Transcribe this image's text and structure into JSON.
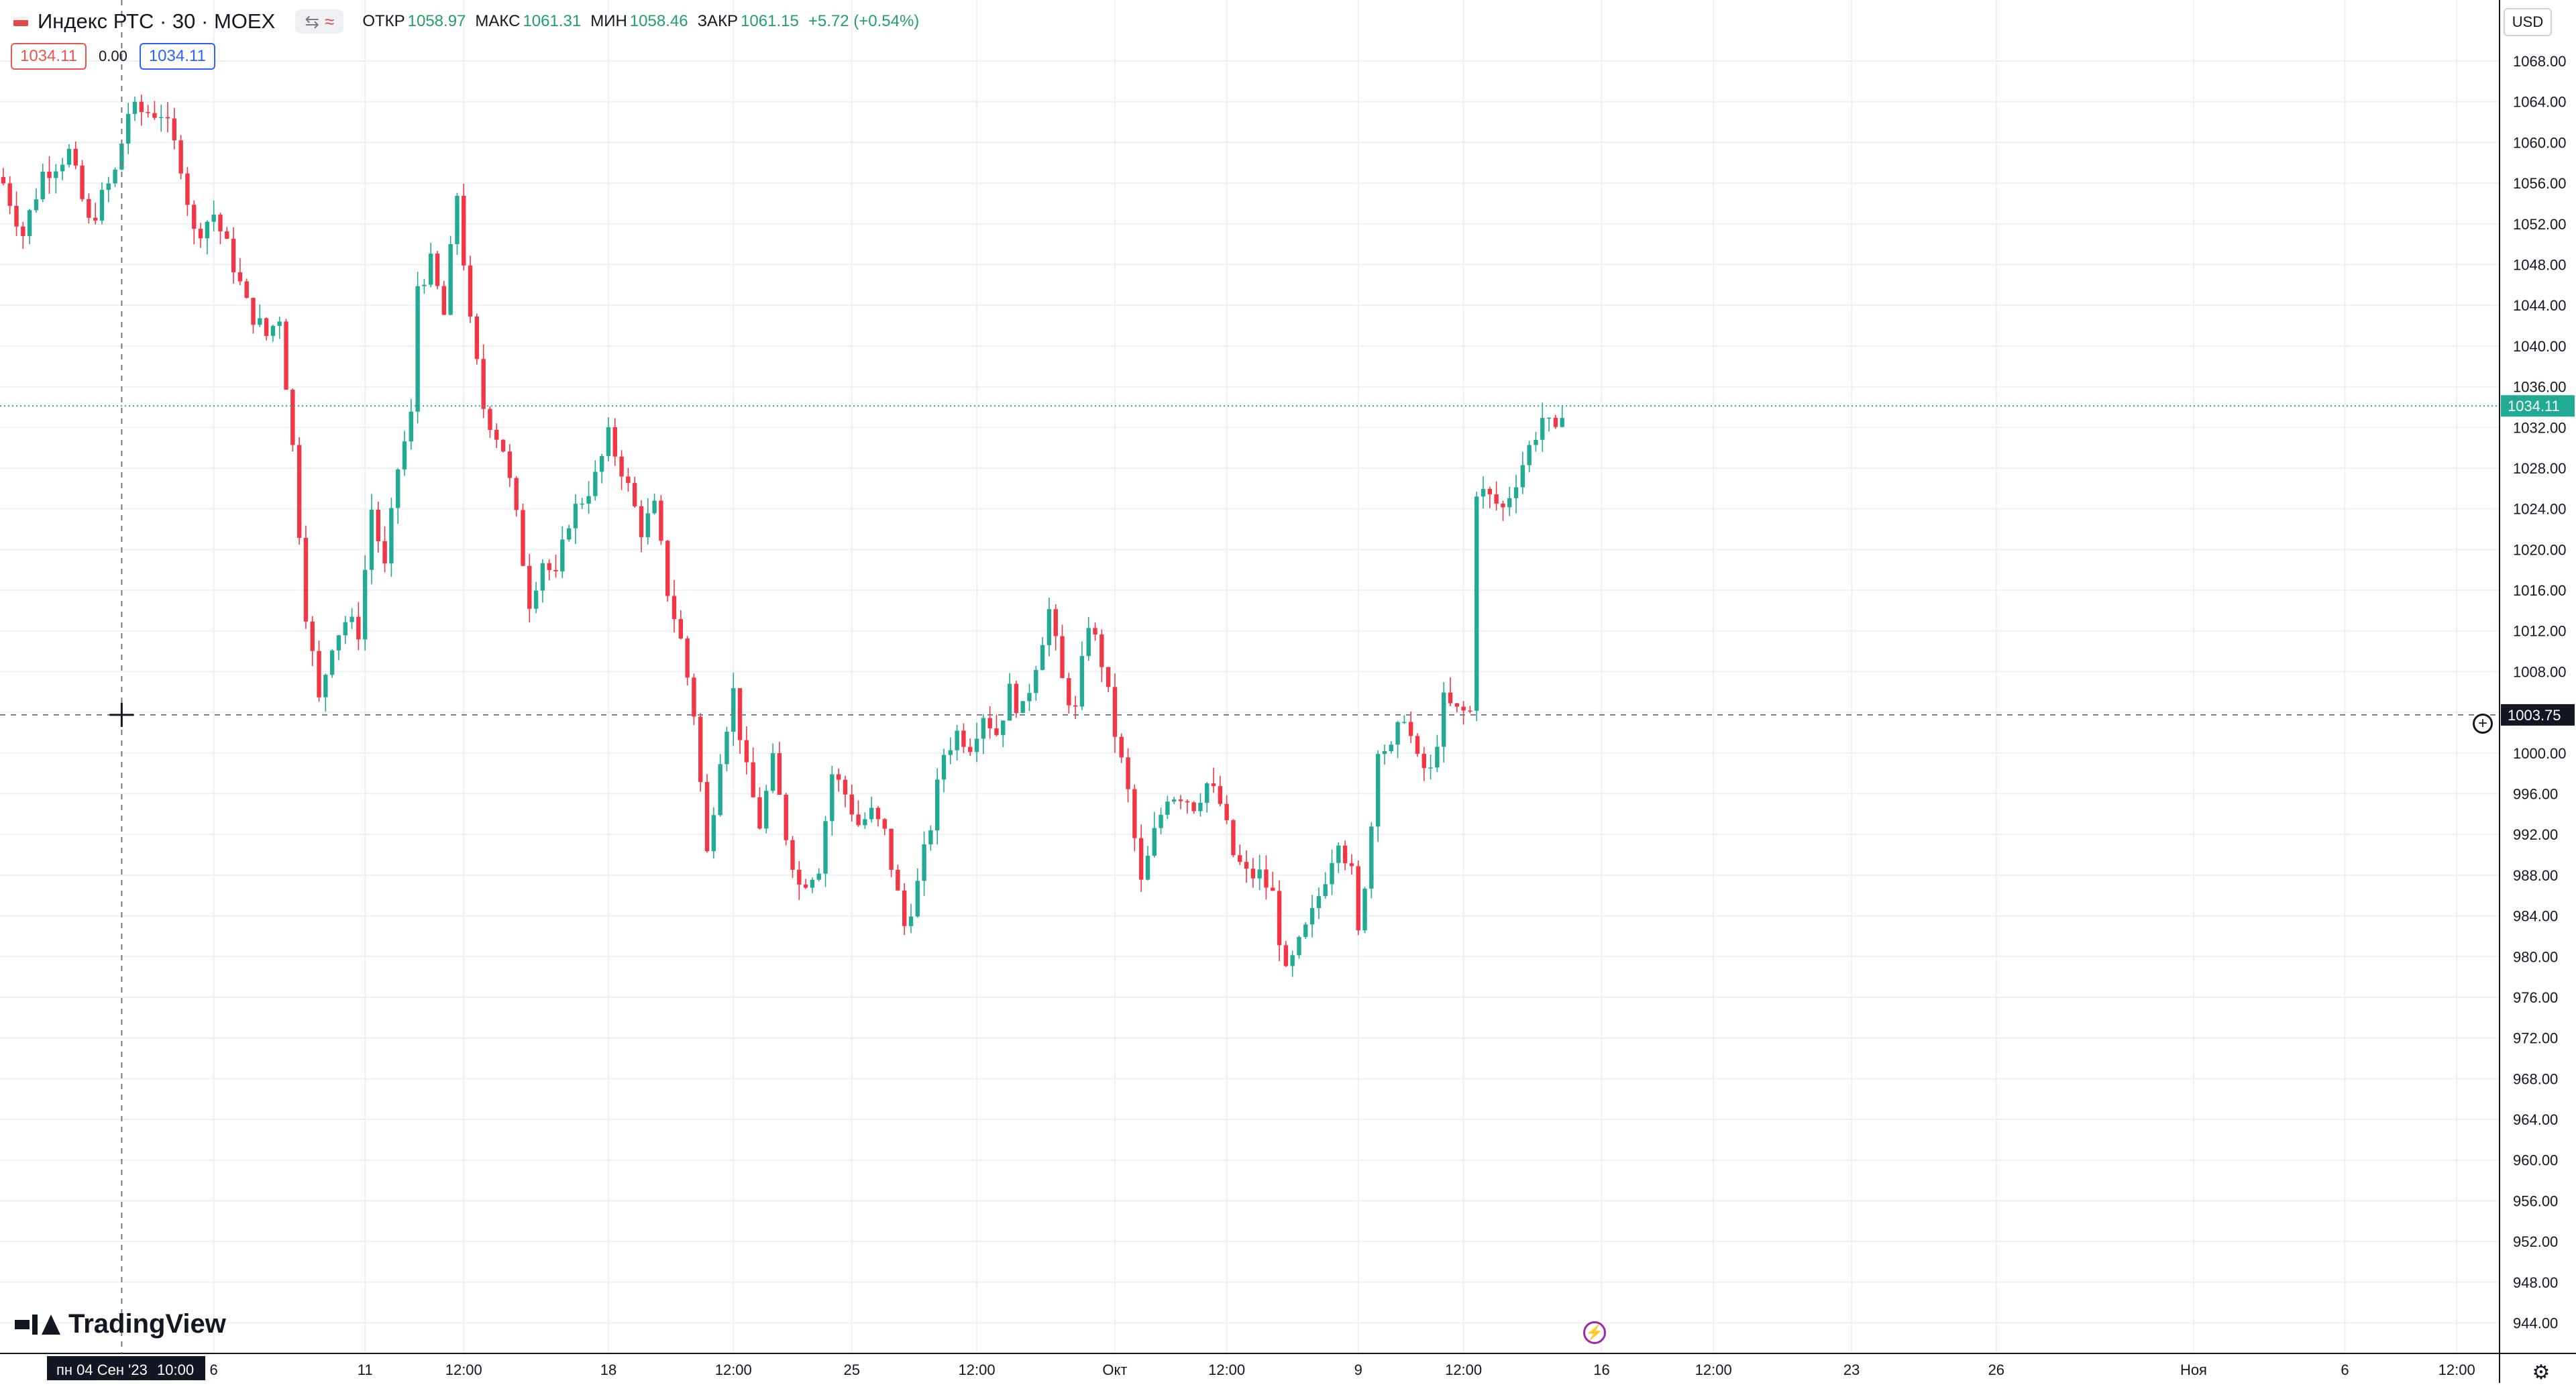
{
  "header": {
    "symbol_title": "Индекс РТС · 30 · MOEX",
    "ohlc": [
      {
        "label": "ОТКР",
        "value": "1058.97"
      },
      {
        "label": "МАКС",
        "value": "1061.31"
      },
      {
        "label": "МИН",
        "value": "1058.46"
      },
      {
        "label": "ЗАКР",
        "value": "1061.15"
      },
      {
        "label": "",
        "value": "+5.72 (+0.54%)"
      }
    ],
    "icons": [
      "eye-icon",
      "wave-icon"
    ]
  },
  "price_boxes": {
    "sell": "1034.11",
    "spread": "0.00",
    "buy": "1034.11"
  },
  "currency": "USD",
  "logo_text": "TradingView",
  "colors": {
    "up": "#22ab94",
    "down": "#f23645",
    "last_price": "#22ab94",
    "axis_tag_dark": "#131722"
  },
  "chart_data": {
    "type": "candlestick",
    "timeframe": "30",
    "currency": "USD",
    "y_range": [
      941,
      1074
    ],
    "y_ticks": [
      944,
      948,
      952,
      956,
      960,
      964,
      968,
      972,
      976,
      980,
      984,
      988,
      992,
      996,
      1000,
      1004,
      1008,
      1012,
      1016,
      1020,
      1024,
      1028,
      1032,
      1036,
      1040,
      1044,
      1048,
      1052,
      1056,
      1060,
      1064,
      1068
    ],
    "y_tick_labels": [
      "944.00",
      "948.00",
      "952.00",
      "956.00",
      "960.00",
      "964.00",
      "968.00",
      "972.00",
      "976.00",
      "980.00",
      "984.00",
      "988.00",
      "992.00",
      "996.00",
      "1000.00",
      "1004.00",
      "1008.00",
      "1012.00",
      "1016.00",
      "1020.00",
      "1024.00",
      "1028.00",
      "1032.00",
      "1036.00",
      "1040.00",
      "1044.00",
      "1048.00",
      "1052.00",
      "1056.00",
      "1060.00",
      "1064.00",
      "1068.00"
    ],
    "x_labels": [
      "6",
      "11",
      "12:00",
      "18",
      "12:00",
      "25",
      "12:00",
      "Окт",
      "12:00",
      "9",
      "12:00",
      "16",
      "12:00",
      "23",
      "26",
      "Ноя",
      "6",
      "12:00"
    ],
    "x_label_bars": [
      32,
      55,
      70,
      92,
      111,
      129,
      148,
      169,
      186,
      206,
      222,
      243,
      260,
      281,
      303,
      333,
      356,
      373
    ],
    "total_bars": 380,
    "last_price": "1034.11",
    "last_price_value": 1034.11,
    "crosshair": {
      "price": "1003.75",
      "price_value": 1003.75,
      "date": "пн 04 Сен '23",
      "time": "10:00",
      "bar": 18
    },
    "anchors": [
      {
        "bar": 0,
        "price": 1056
      },
      {
        "bar": 3,
        "price": 1051
      },
      {
        "bar": 6,
        "price": 1057
      },
      {
        "bar": 10,
        "price": 1059
      },
      {
        "bar": 13,
        "price": 1052
      },
      {
        "bar": 17,
        "price": 1057
      },
      {
        "bar": 19,
        "price": 1063
      },
      {
        "bar": 24,
        "price": 1063
      },
      {
        "bar": 27,
        "price": 1058
      },
      {
        "bar": 29,
        "price": 1051
      },
      {
        "bar": 32,
        "price": 1053
      },
      {
        "bar": 35,
        "price": 1048
      },
      {
        "bar": 37,
        "price": 1044
      },
      {
        "bar": 40,
        "price": 1041
      },
      {
        "bar": 42,
        "price": 1043
      },
      {
        "bar": 44,
        "price": 1030
      },
      {
        "bar": 46,
        "price": 1014
      },
      {
        "bar": 48,
        "price": 1005
      },
      {
        "bar": 50,
        "price": 1011
      },
      {
        "bar": 52,
        "price": 1013
      },
      {
        "bar": 54,
        "price": 1012
      },
      {
        "bar": 56,
        "price": 1024
      },
      {
        "bar": 58,
        "price": 1018
      },
      {
        "bar": 60,
        "price": 1028
      },
      {
        "bar": 62,
        "price": 1033
      },
      {
        "bar": 63,
        "price": 1046
      },
      {
        "bar": 65,
        "price": 1048
      },
      {
        "bar": 67,
        "price": 1043
      },
      {
        "bar": 69,
        "price": 1055
      },
      {
        "bar": 71,
        "price": 1042
      },
      {
        "bar": 73,
        "price": 1034
      },
      {
        "bar": 76,
        "price": 1030
      },
      {
        "bar": 78,
        "price": 1023
      },
      {
        "bar": 80,
        "price": 1015
      },
      {
        "bar": 82,
        "price": 1019
      },
      {
        "bar": 84,
        "price": 1017
      },
      {
        "bar": 86,
        "price": 1023
      },
      {
        "bar": 88,
        "price": 1025
      },
      {
        "bar": 90,
        "price": 1027
      },
      {
        "bar": 92,
        "price": 1031
      },
      {
        "bar": 94,
        "price": 1028
      },
      {
        "bar": 97,
        "price": 1022
      },
      {
        "bar": 99,
        "price": 1024
      },
      {
        "bar": 101,
        "price": 1016
      },
      {
        "bar": 103,
        "price": 1011
      },
      {
        "bar": 105,
        "price": 1004
      },
      {
        "bar": 107,
        "price": 990
      },
      {
        "bar": 109,
        "price": 1000
      },
      {
        "bar": 111,
        "price": 1006
      },
      {
        "bar": 113,
        "price": 998
      },
      {
        "bar": 115,
        "price": 993
      },
      {
        "bar": 117,
        "price": 999
      },
      {
        "bar": 119,
        "price": 992
      },
      {
        "bar": 121,
        "price": 987
      },
      {
        "bar": 124,
        "price": 989
      },
      {
        "bar": 126,
        "price": 998
      },
      {
        "bar": 128,
        "price": 996
      },
      {
        "bar": 130,
        "price": 993
      },
      {
        "bar": 132,
        "price": 994
      },
      {
        "bar": 134,
        "price": 992
      },
      {
        "bar": 136,
        "price": 986
      },
      {
        "bar": 137,
        "price": 983
      },
      {
        "bar": 139,
        "price": 987
      },
      {
        "bar": 141,
        "price": 993
      },
      {
        "bar": 143,
        "price": 1000
      },
      {
        "bar": 145,
        "price": 1002
      },
      {
        "bar": 147,
        "price": 1001
      },
      {
        "bar": 149,
        "price": 1004
      },
      {
        "bar": 151,
        "price": 1002
      },
      {
        "bar": 153,
        "price": 1006
      },
      {
        "bar": 155,
        "price": 1004
      },
      {
        "bar": 157,
        "price": 1009
      },
      {
        "bar": 159,
        "price": 1014
      },
      {
        "bar": 161,
        "price": 1007
      },
      {
        "bar": 163,
        "price": 1004
      },
      {
        "bar": 165,
        "price": 1013
      },
      {
        "bar": 167,
        "price": 1009
      },
      {
        "bar": 169,
        "price": 1002
      },
      {
        "bar": 171,
        "price": 996
      },
      {
        "bar": 173,
        "price": 987
      },
      {
        "bar": 175,
        "price": 992
      },
      {
        "bar": 177,
        "price": 996
      },
      {
        "bar": 179,
        "price": 996
      },
      {
        "bar": 181,
        "price": 995
      },
      {
        "bar": 183,
        "price": 997
      },
      {
        "bar": 185,
        "price": 995
      },
      {
        "bar": 187,
        "price": 990
      },
      {
        "bar": 189,
        "price": 988
      },
      {
        "bar": 191,
        "price": 988
      },
      {
        "bar": 193,
        "price": 986
      },
      {
        "bar": 195,
        "price": 978
      },
      {
        "bar": 197,
        "price": 981
      },
      {
        "bar": 199,
        "price": 984
      },
      {
        "bar": 201,
        "price": 988
      },
      {
        "bar": 203,
        "price": 992
      },
      {
        "bar": 205,
        "price": 988
      },
      {
        "bar": 206,
        "price": 982
      },
      {
        "bar": 208,
        "price": 993
      },
      {
        "bar": 209,
        "price": 1001
      },
      {
        "bar": 211,
        "price": 1000
      },
      {
        "bar": 213,
        "price": 1004
      },
      {
        "bar": 215,
        "price": 999
      },
      {
        "bar": 217,
        "price": 998
      },
      {
        "bar": 219,
        "price": 1005
      },
      {
        "bar": 221,
        "price": 1004
      },
      {
        "bar": 223,
        "price": 1004
      },
      {
        "bar": 224,
        "price": 1026
      },
      {
        "bar": 226,
        "price": 1025
      },
      {
        "bar": 228,
        "price": 1024
      },
      {
        "bar": 230,
        "price": 1027
      },
      {
        "bar": 232,
        "price": 1030
      },
      {
        "bar": 234,
        "price": 1033
      },
      {
        "bar": 236,
        "price": 1031
      },
      {
        "bar": 237,
        "price": 1034
      }
    ]
  }
}
